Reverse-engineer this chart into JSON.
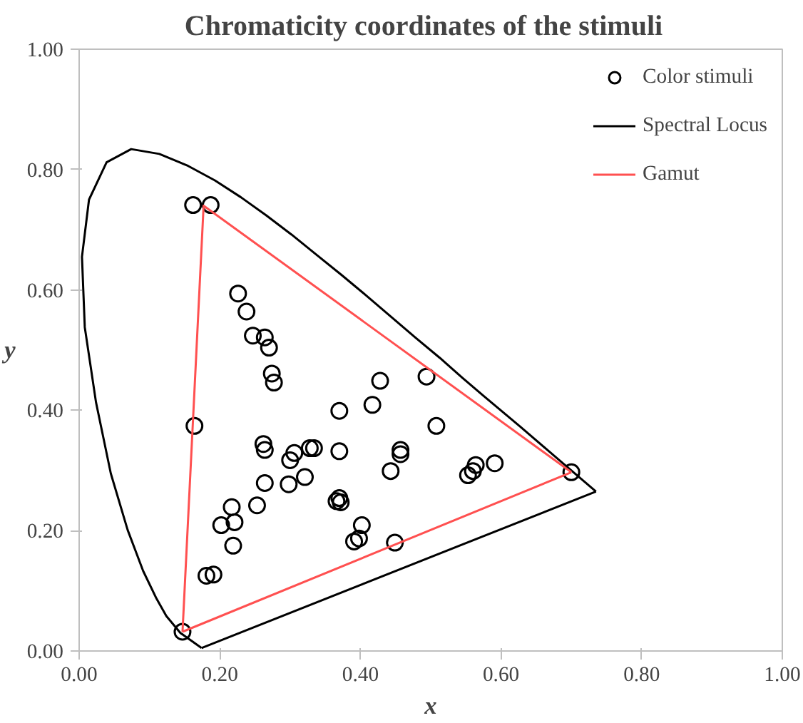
{
  "chart_data": {
    "type": "scatter",
    "title": "Chromaticity  coordinates  of the stimuli",
    "xlabel": "x",
    "ylabel": "y",
    "xlim": [
      0,
      1
    ],
    "ylim": [
      0,
      1
    ],
    "xticks": [
      {
        "value": 0,
        "label": "0.00"
      },
      {
        "value": 0.2,
        "label": "0.20"
      },
      {
        "value": 0.4,
        "label": "0.40"
      },
      {
        "value": 0.6,
        "label": "0.60"
      },
      {
        "value": 0.8,
        "label": "0.80"
      },
      {
        "value": 1,
        "label": "1.00"
      }
    ],
    "yticks": [
      {
        "value": 0,
        "label": "0.00"
      },
      {
        "value": 0.2,
        "label": "0.20"
      },
      {
        "value": 0.4,
        "label": "0.40"
      },
      {
        "value": 0.6,
        "label": "0.60"
      },
      {
        "value": 0.8,
        "label": "0.80"
      },
      {
        "value": 1,
        "label": "1.00"
      }
    ],
    "grid": false,
    "legend": "top right",
    "series": [
      {
        "name": "Color stimuli",
        "marker": "circle",
        "color": "#000000",
        "x": [
          0.162,
          0.187,
          0.226,
          0.238,
          0.247,
          0.264,
          0.27,
          0.274,
          0.277,
          0.164,
          0.147,
          0.7,
          0.428,
          0.494,
          0.37,
          0.417,
          0.508,
          0.262,
          0.264,
          0.306,
          0.3,
          0.328,
          0.334,
          0.37,
          0.457,
          0.457,
          0.443,
          0.553,
          0.56,
          0.564,
          0.591,
          0.264,
          0.298,
          0.321,
          0.253,
          0.37,
          0.372,
          0.366,
          0.402,
          0.398,
          0.391,
          0.449,
          0.217,
          0.202,
          0.221,
          0.219,
          0.181,
          0.191
        ],
        "values": [
          0.741,
          0.741,
          0.594,
          0.564,
          0.524,
          0.521,
          0.504,
          0.461,
          0.446,
          0.374,
          0.032,
          0.297,
          0.449,
          0.456,
          0.399,
          0.409,
          0.374,
          0.344,
          0.334,
          0.329,
          0.317,
          0.337,
          0.337,
          0.332,
          0.334,
          0.327,
          0.299,
          0.292,
          0.299,
          0.309,
          0.312,
          0.279,
          0.277,
          0.289,
          0.242,
          0.254,
          0.247,
          0.249,
          0.209,
          0.187,
          0.182,
          0.18,
          0.239,
          0.209,
          0.214,
          0.175,
          0.125,
          0.127
        ]
      },
      {
        "name": "Spectral Locus",
        "type": "line",
        "color": "#000000",
        "x": [
          0.174,
          0.144,
          0.124,
          0.11,
          0.091,
          0.069,
          0.045,
          0.024,
          0.008,
          0.004,
          0.014,
          0.039,
          0.074,
          0.114,
          0.155,
          0.193,
          0.23,
          0.266,
          0.302,
          0.337,
          0.373,
          0.409,
          0.444,
          0.479,
          0.513,
          0.545,
          0.575,
          0.627,
          0.666,
          0.692,
          0.719,
          0.735
        ],
        "values": [
          0.005,
          0.03,
          0.058,
          0.087,
          0.133,
          0.201,
          0.295,
          0.413,
          0.538,
          0.655,
          0.75,
          0.812,
          0.834,
          0.826,
          0.806,
          0.782,
          0.754,
          0.724,
          0.692,
          0.659,
          0.625,
          0.59,
          0.555,
          0.52,
          0.487,
          0.454,
          0.424,
          0.373,
          0.334,
          0.308,
          0.281,
          0.265
        ]
      },
      {
        "type": "line",
        "color": "#000000",
        "x": [
          0.174,
          0.735
        ],
        "values": [
          0.005,
          0.265
        ]
      },
      {
        "name": "Gamut",
        "type": "line",
        "color": "#ff5050",
        "x": [
          0.147,
          0.177,
          0.7
        ],
        "values": [
          0.032,
          0.74,
          0.297
        ]
      },
      {
        "type": "line",
        "color": "#ff5050",
        "x": [
          0.147,
          0.7
        ],
        "values": [
          0.032,
          0.297
        ]
      }
    ]
  }
}
